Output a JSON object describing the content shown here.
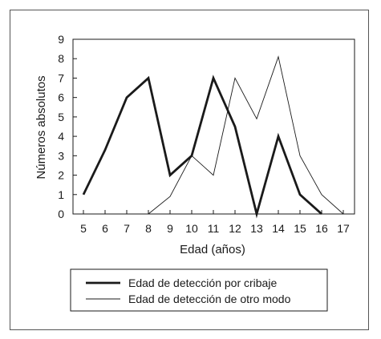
{
  "chart_data": {
    "type": "line",
    "x": [
      5,
      6,
      7,
      8,
      9,
      10,
      11,
      12,
      13,
      14,
      15,
      16,
      17
    ],
    "xlabel": "Edad (años)",
    "ylabel": "Números absolutos",
    "xlim": [
      5,
      17
    ],
    "ylim": [
      0,
      9
    ],
    "yticks": [
      0,
      1,
      2,
      3,
      4,
      5,
      6,
      7,
      8,
      9
    ],
    "grid": false,
    "legend_position": "bottom",
    "series": [
      {
        "name": "Edad de detección por cribaje",
        "style": "thick",
        "color": "#1a1a1a",
        "points": [
          [
            5,
            1
          ],
          [
            6,
            3.3
          ],
          [
            7,
            6
          ],
          [
            8,
            7
          ],
          [
            9,
            2
          ],
          [
            10,
            3
          ],
          [
            11,
            7
          ],
          [
            12,
            4.5
          ],
          [
            13,
            0
          ],
          [
            14,
            4
          ],
          [
            15,
            1
          ],
          [
            16,
            0
          ]
        ]
      },
      {
        "name": "Edad de detección de otro modo",
        "style": "thin",
        "color": "#1a1a1a",
        "points": [
          [
            8,
            0
          ],
          [
            9,
            0.9
          ],
          [
            10,
            3
          ],
          [
            11,
            2
          ],
          [
            12,
            7
          ],
          [
            13,
            4.9
          ],
          [
            14,
            8.1
          ],
          [
            15,
            3
          ],
          [
            16,
            1
          ],
          [
            17,
            0
          ]
        ]
      }
    ]
  }
}
